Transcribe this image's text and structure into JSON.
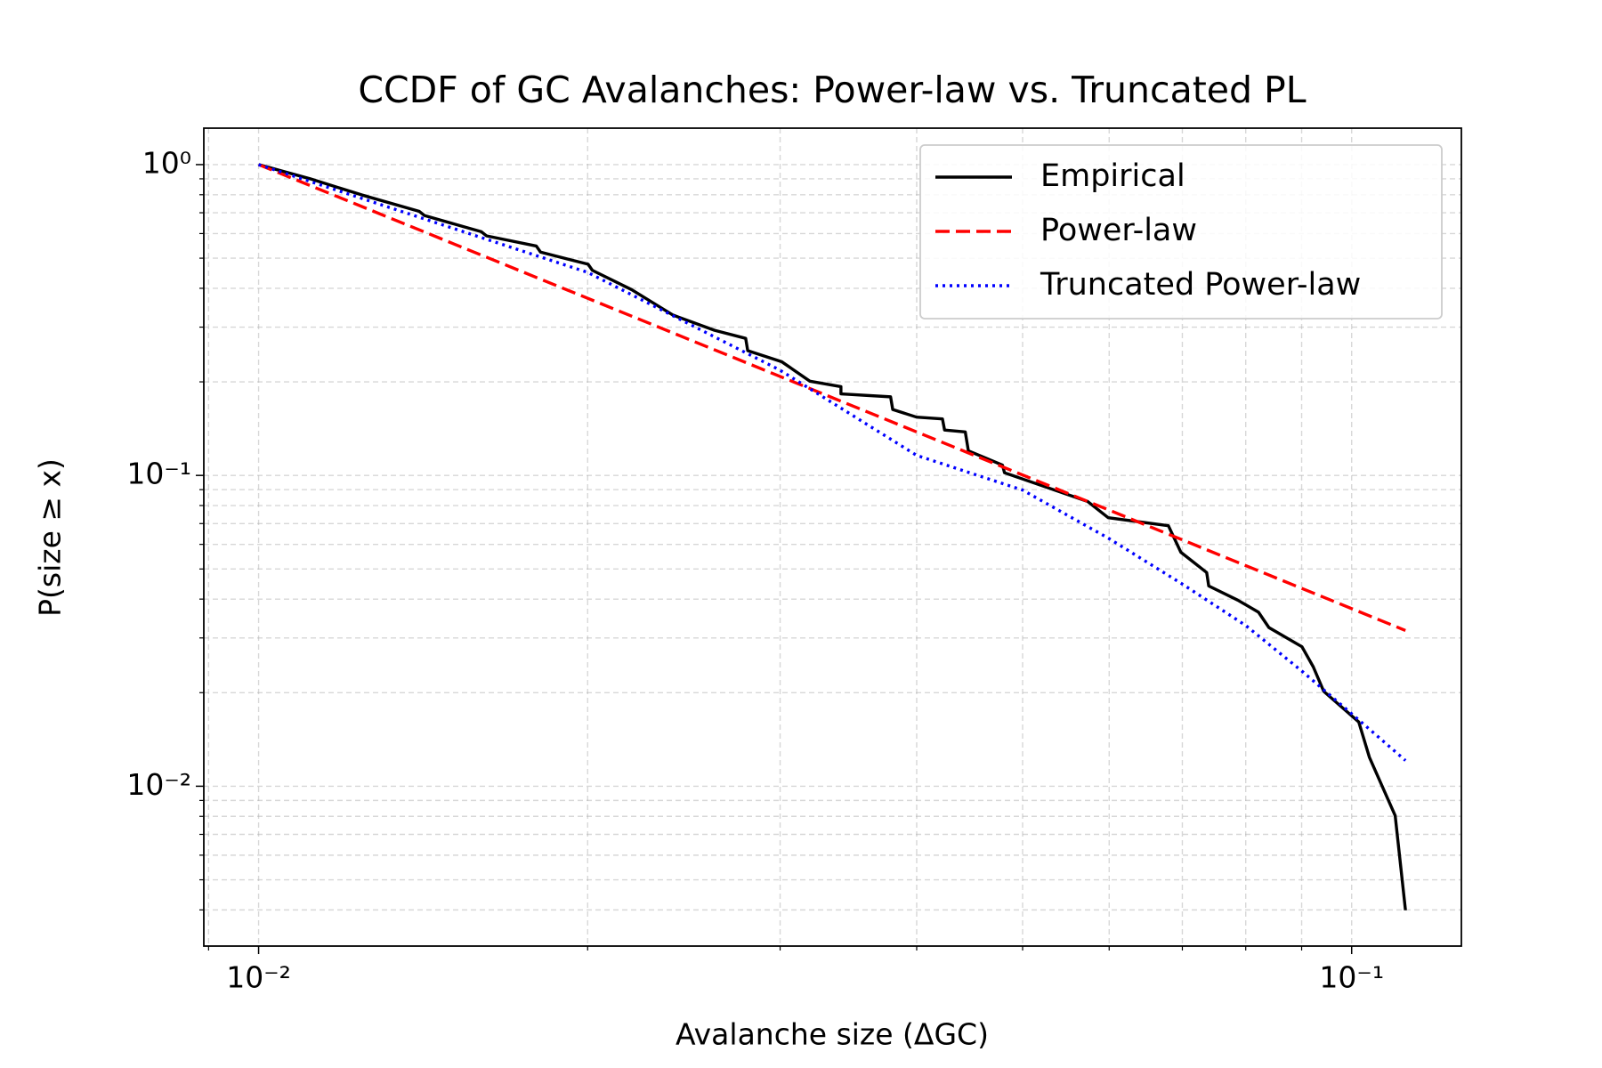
{
  "chart_data": {
    "type": "line",
    "title": "CCDF of GC Avalanches: Power-law vs. Truncated PL",
    "xlabel": "Avalanche size (ΔGC)",
    "ylabel": "P(size ≥ x)",
    "xscale": "log",
    "yscale": "log",
    "grid": true,
    "legend": "upper right",
    "xlim": [
      0.00891,
      0.126
    ],
    "ylim": [
      0.00306,
      1.31
    ],
    "xticks": [
      {
        "value": 0.01,
        "label": "10⁻²"
      },
      {
        "value": 0.1,
        "label": "10⁻¹"
      }
    ],
    "yticks": [
      {
        "value": 0.01,
        "label": "10⁻²"
      },
      {
        "value": 0.1,
        "label": "10⁻¹"
      },
      {
        "value": 1,
        "label": "10⁰"
      }
    ],
    "xminorticks": [
      0.009,
      0.02,
      0.03,
      0.04,
      0.05,
      0.06,
      0.07,
      0.08,
      0.09
    ],
    "yminorticks": [
      0.004,
      0.005,
      0.006,
      0.007,
      0.008,
      0.009,
      0.02,
      0.03,
      0.04,
      0.05,
      0.06,
      0.07,
      0.08,
      0.09,
      0.2,
      0.3,
      0.4,
      0.5,
      0.6,
      0.7,
      0.8,
      0.9
    ],
    "series": [
      {
        "name": "Empirical",
        "color": "#000000",
        "style": "solid",
        "x": [
          0.01,
          0.01115,
          0.01244,
          0.01403,
          0.01418,
          0.01599,
          0.01616,
          0.01795,
          0.01811,
          0.02002,
          0.0202,
          0.02194,
          0.02394,
          0.02613,
          0.0279,
          0.02802,
          0.03011,
          0.03194,
          0.0341,
          0.0341,
          0.03786,
          0.03803,
          0.03999,
          0.04223,
          0.04242,
          0.04431,
          0.0446,
          0.04792,
          0.04813,
          0.05732,
          0.05988,
          0.06797,
          0.06978,
          0.07368,
          0.074,
          0.07866,
          0.08218,
          0.084,
          0.09006,
          0.09224,
          0.09428,
          0.1015,
          0.1038,
          0.1096,
          0.112
        ],
        "values": [
          1,
          0.9,
          0.798,
          0.707,
          0.686,
          0.608,
          0.59,
          0.547,
          0.523,
          0.478,
          0.457,
          0.396,
          0.328,
          0.293,
          0.276,
          0.252,
          0.232,
          0.201,
          0.193,
          0.183,
          0.179,
          0.163,
          0.154,
          0.152,
          0.14,
          0.138,
          0.12,
          0.108,
          0.102,
          0.0825,
          0.0731,
          0.0689,
          0.0566,
          0.0487,
          0.0441,
          0.0397,
          0.0363,
          0.0324,
          0.0281,
          0.0242,
          0.0202,
          0.0161,
          0.0124,
          0.00804,
          0.00399
        ]
      },
      {
        "name": "Power-law",
        "color": "#ff0000",
        "style": "dashed",
        "x": [
          0.01,
          0.112
        ],
        "values": [
          1,
          0.0317
        ]
      },
      {
        "name": "Truncated Power-law",
        "color": "#0000ff",
        "style": "dotted",
        "x": [
          0.01,
          0.02,
          0.03,
          0.04,
          0.05,
          0.06,
          0.07,
          0.08,
          0.09,
          0.1,
          0.112
        ],
        "values": [
          1,
          0.45,
          0.218,
          0.116,
          0.0897,
          0.0626,
          0.0447,
          0.0329,
          0.0235,
          0.0171,
          0.0121
        ]
      }
    ]
  }
}
